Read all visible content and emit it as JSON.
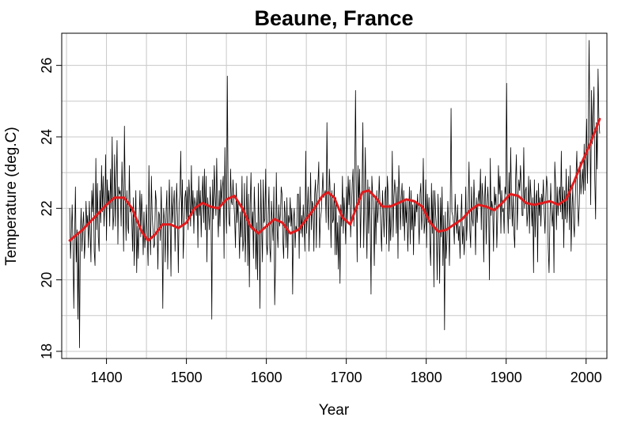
{
  "chart_data": {
    "type": "line",
    "title": "Beaune, France",
    "xlabel": "Year",
    "ylabel": "Temperature (deg.C)",
    "xlim": [
      1344,
      2026
    ],
    "ylim": [
      17.8,
      26.9
    ],
    "x_ticks": [
      1400,
      1500,
      1600,
      1700,
      1800,
      1900,
      2000
    ],
    "y_ticks": [
      18,
      20,
      22,
      24,
      26
    ],
    "grid": true,
    "legend": "none",
    "colors": {
      "annual": "#000000",
      "smooth": "#e31a1c",
      "grid": "#c8c8c8"
    },
    "series": [
      {
        "role": "annual",
        "x_start": 1354,
        "x_end": 2017,
        "values": [
          22.0,
          20.6,
          21.3,
          22.1,
          21.0,
          19.2,
          21.1,
          22.6,
          20.5,
          21.4,
          18.9,
          21.3,
          18.1,
          21.2,
          22.0,
          20.8,
          21.5,
          21.9,
          20.6,
          21.1,
          22.2,
          21.5,
          21.8,
          20.9,
          22.2,
          21.4,
          20.5,
          22.5,
          21.9,
          22.7,
          20.8,
          20.4,
          23.4,
          21.4,
          22.7,
          21.2,
          20.8,
          22.5,
          21.6,
          23.2,
          21.9,
          22.9,
          21.5,
          22.1,
          23.5,
          21.1,
          22.8,
          22.1,
          22.5,
          21.5,
          23.1,
          22.0,
          24.0,
          21.4,
          21.8,
          23.5,
          21.5,
          22.8,
          23.9,
          21.0,
          22.6,
          22.4,
          22.5,
          21.5,
          23.3,
          22.3,
          20.8,
          24.3,
          22.4,
          21.1,
          22.5,
          21.5,
          21.3,
          23.2,
          21.9,
          22.0,
          21.7,
          20.8,
          22.3,
          20.4,
          21.6,
          22.5,
          20.2,
          21.5,
          20.6,
          21.7,
          22.5,
          21.2,
          22.4,
          21.8,
          20.7,
          21.9,
          20.9,
          21.4,
          22.1,
          21.2,
          20.4,
          23.2,
          21.5,
          20.7,
          22.9,
          21.8,
          21.4,
          20.9,
          21.0,
          22.5,
          22.2,
          21.5,
          20.3,
          21.9,
          21.8,
          21.1,
          22.6,
          21.4,
          19.2,
          22.0,
          21.7,
          20.5,
          21.9,
          22.5,
          20.3,
          21.6,
          22.8,
          21.6,
          20.1,
          22.6,
          21.6,
          22.1,
          22.5,
          20.8,
          21.9,
          22.7,
          21.8,
          20.2,
          22.1,
          22.4,
          23.6,
          21.5,
          22.8,
          20.6,
          21.4,
          22.3,
          22.5,
          21.7,
          22.6,
          21.4,
          22.8,
          22.3,
          21.5,
          23.2,
          21.8,
          22.5,
          21.3,
          22.3,
          22.1,
          21.8,
          22.5,
          20.9,
          22.9,
          21.8,
          22.5,
          21.2,
          22.3,
          22.9,
          21.6,
          23.1,
          21.4,
          22.9,
          20.5,
          22.3,
          21.9,
          21.4,
          22.6,
          22.0,
          18.9,
          22.8,
          21.7,
          23.2,
          22.4,
          21.8,
          23.4,
          22.0,
          21.2,
          22.5,
          21.5,
          22.8,
          22.1,
          22.6,
          22.9,
          20.6,
          23.7,
          22.1,
          21.3,
          25.7,
          22.4,
          21.6,
          21.5,
          23.1,
          22.2,
          22.1,
          22.8,
          22.2,
          21.7,
          20.9,
          22.7,
          21.6,
          22.2,
          21.6,
          20.6,
          21.9,
          21.2,
          22.9,
          20.8,
          21.1,
          22.7,
          20.5,
          21.7,
          22.9,
          20.4,
          22.4,
          19.8,
          22.1,
          23.0,
          21.4,
          21.9,
          20.6,
          22.6,
          21.8,
          20.3,
          21.6,
          20.0,
          22.7,
          21.4,
          19.2,
          22.8,
          21.5,
          20.5,
          22.8,
          21.6,
          21.7,
          23.1,
          21.0,
          20.7,
          21.8,
          22.6,
          20.9,
          20.5,
          22.2,
          21.6,
          21.1,
          22.6,
          19.3,
          20.4,
          23.0,
          21.4,
          20.9,
          22.1,
          21.5,
          21.8,
          22.6,
          22.4,
          21.1,
          20.6,
          22.2,
          21.8,
          20.9,
          22.3,
          20.6,
          21.8,
          21.6,
          22.3,
          21.5,
          22.0,
          19.6,
          21.7,
          22.0,
          20.9,
          21.5,
          21.4,
          22.4,
          22.4,
          20.6,
          22.6,
          21.3,
          21.8,
          21.2,
          22.1,
          21.6,
          20.8,
          23.6,
          21.3,
          21.9,
          22.6,
          20.8,
          21.8,
          23.0,
          21.4,
          22.2,
          22.1,
          20.8,
          22.4,
          22.8,
          20.9,
          22.4,
          22.7,
          23.3,
          20.9,
          21.7,
          21.9,
          22.4,
          23.0,
          22.3,
          22.4,
          22.5,
          21.6,
          24.4,
          22.1,
          21.4,
          23.1,
          22.4,
          20.9,
          22.5,
          21.6,
          21.7,
          22.7,
          20.7,
          22.3,
          20.7,
          21.6,
          20.3,
          21.8,
          19.9,
          22.1,
          21.5,
          22.9,
          21.3,
          22.3,
          21.8,
          21.0,
          22.6,
          21.6,
          22.9,
          22.1,
          22.8,
          21.2,
          22.0,
          22.7,
          23.1,
          21.5,
          22.8,
          25.3,
          22.5,
          20.5,
          23.2,
          22.1,
          23.1,
          20.9,
          22.2,
          22.6,
          24.4,
          20.9,
          22.2,
          23.7,
          21.7,
          20.6,
          22.8,
          21.3,
          22.6,
          21.6,
          19.6,
          22.9,
          22.4,
          21.8,
          20.4,
          22.3,
          21.0,
          22.5,
          21.6,
          22.0,
          22.9,
          22.1,
          21.4,
          20.8,
          22.5,
          21.9,
          21.2,
          22.4,
          22.6,
          21.0,
          22.9,
          22.4,
          20.8,
          22.1,
          21.1,
          21.7,
          23.6,
          21.2,
          22.3,
          22.8,
          22.4,
          21.3,
          22.6,
          20.6,
          23.2,
          22.4,
          21.4,
          22.3,
          22.7,
          21.5,
          22.5,
          21.1,
          22.2,
          21.6,
          22.2,
          20.8,
          21.7,
          22.6,
          21.0,
          22.5,
          21.4,
          22.1,
          20.7,
          22.2,
          21.5,
          22.2,
          21.9,
          22.4,
          21.7,
          21.0,
          22.4,
          22.7,
          21.4,
          21.9,
          23.4,
          21.3,
          21.6,
          22.8,
          20.9,
          22.4,
          21.6,
          22.3,
          21.0,
          20.4,
          22.7,
          21.3,
          22.5,
          19.8,
          22.5,
          21.9,
          21.5,
          20.0,
          22.4,
          21.6,
          19.9,
          22.3,
          21.2,
          22.6,
          20.4,
          21.8,
          18.6,
          21.9,
          20.6,
          21.1,
          22.2,
          21.6,
          20.4,
          22.1,
          24.8,
          21.9,
          21.8,
          21.6,
          21.0,
          22.4,
          21.7,
          21.3,
          22.1,
          21.1,
          21.5,
          20.6,
          21.7,
          22.4,
          21.0,
          21.5,
          20.7,
          21.3,
          22.6,
          21.1,
          21.7,
          22.2,
          23.3,
          21.4,
          20.9,
          22.6,
          21.7,
          21.5,
          22.8,
          22.0,
          20.7,
          22.3,
          21.6,
          22.2,
          22.5,
          22.1,
          23.1,
          21.4,
          22.7,
          22.3,
          20.5,
          22.2,
          22.9,
          21.0,
          22.0,
          22.6,
          22.0,
          20.0,
          23.4,
          21.8,
          22.2,
          22.0,
          20.8,
          22.6,
          22.1,
          22.4,
          20.9,
          21.7,
          23.2,
          22.4,
          22.9,
          21.3,
          22.5,
          21.9,
          22.0,
          21.3,
          22.6,
          22.4,
          25.5,
          22.1,
          21.3,
          23.0,
          21.7,
          23.7,
          22.2,
          21.5,
          22.4,
          21.3,
          20.9,
          22.8,
          23.5,
          21.4,
          22.3,
          22.8,
          22.5,
          23.2,
          22.7,
          21.8,
          21.8,
          23.7,
          22.0,
          22.5,
          22.6,
          21.5,
          21.9,
          22.9,
          21.3,
          22.8,
          22.3,
          21.5,
          22.3,
          20.2,
          22.8,
          21.2,
          22.3,
          22.5,
          20.5,
          22.7,
          21.8,
          22.3,
          21.5,
          22.4,
          22.1,
          22.8,
          21.9,
          21.3,
          22.3,
          22.9,
          22.6,
          20.9,
          20.2,
          21.6,
          22.7,
          21.9,
          21.5,
          22.1,
          20.2,
          23.3,
          22.7,
          21.4,
          22.6,
          21.8,
          22.4,
          22.6,
          21.9,
          23.6,
          21.7,
          22.6,
          20.9,
          22.5,
          21.7,
          23.1,
          21.6,
          22.2,
          22.9,
          21.4,
          23.2,
          20.8,
          21.9,
          22.6,
          21.6,
          21.2,
          22.2,
          22.9,
          23.6,
          22.1,
          21.5,
          22.1,
          23.3,
          22.4,
          22.8,
          23.1,
          22.4,
          23.8,
          22.5,
          23.5,
          24.5,
          22.7,
          23.9,
          26.7,
          24.2,
          22.1,
          25.3,
          23.8,
          24.6,
          25.4,
          22.8,
          21.7,
          24.4,
          23.1,
          25.9,
          24.5,
          24.1
        ]
      },
      {
        "role": "smooth",
        "points": [
          [
            1354,
            21.1
          ],
          [
            1370,
            21.4
          ],
          [
            1385,
            21.75
          ],
          [
            1400,
            22.1
          ],
          [
            1410,
            22.3
          ],
          [
            1422,
            22.3
          ],
          [
            1432,
            22.0
          ],
          [
            1444,
            21.35
          ],
          [
            1452,
            21.1
          ],
          [
            1460,
            21.25
          ],
          [
            1470,
            21.55
          ],
          [
            1480,
            21.55
          ],
          [
            1490,
            21.45
          ],
          [
            1500,
            21.6
          ],
          [
            1510,
            22.0
          ],
          [
            1520,
            22.15
          ],
          [
            1530,
            22.05
          ],
          [
            1540,
            22.0
          ],
          [
            1550,
            22.25
          ],
          [
            1560,
            22.35
          ],
          [
            1570,
            22.0
          ],
          [
            1580,
            21.5
          ],
          [
            1590,
            21.3
          ],
          [
            1600,
            21.5
          ],
          [
            1610,
            21.7
          ],
          [
            1620,
            21.6
          ],
          [
            1630,
            21.3
          ],
          [
            1640,
            21.4
          ],
          [
            1650,
            21.7
          ],
          [
            1660,
            22.0
          ],
          [
            1670,
            22.35
          ],
          [
            1677,
            22.45
          ],
          [
            1685,
            22.3
          ],
          [
            1695,
            21.75
          ],
          [
            1705,
            21.55
          ],
          [
            1712,
            22.0
          ],
          [
            1720,
            22.45
          ],
          [
            1728,
            22.5
          ],
          [
            1737,
            22.3
          ],
          [
            1745,
            22.05
          ],
          [
            1755,
            22.05
          ],
          [
            1765,
            22.15
          ],
          [
            1775,
            22.25
          ],
          [
            1785,
            22.2
          ],
          [
            1795,
            22.05
          ],
          [
            1805,
            21.6
          ],
          [
            1815,
            21.35
          ],
          [
            1825,
            21.4
          ],
          [
            1835,
            21.55
          ],
          [
            1845,
            21.7
          ],
          [
            1855,
            21.95
          ],
          [
            1865,
            22.1
          ],
          [
            1875,
            22.05
          ],
          [
            1885,
            21.95
          ],
          [
            1895,
            22.15
          ],
          [
            1905,
            22.4
          ],
          [
            1915,
            22.35
          ],
          [
            1925,
            22.15
          ],
          [
            1935,
            22.1
          ],
          [
            1945,
            22.15
          ],
          [
            1955,
            22.2
          ],
          [
            1965,
            22.1
          ],
          [
            1975,
            22.25
          ],
          [
            1985,
            22.75
          ],
          [
            1995,
            23.3
          ],
          [
            2005,
            23.8
          ],
          [
            2017,
            24.5
          ]
        ]
      }
    ]
  }
}
